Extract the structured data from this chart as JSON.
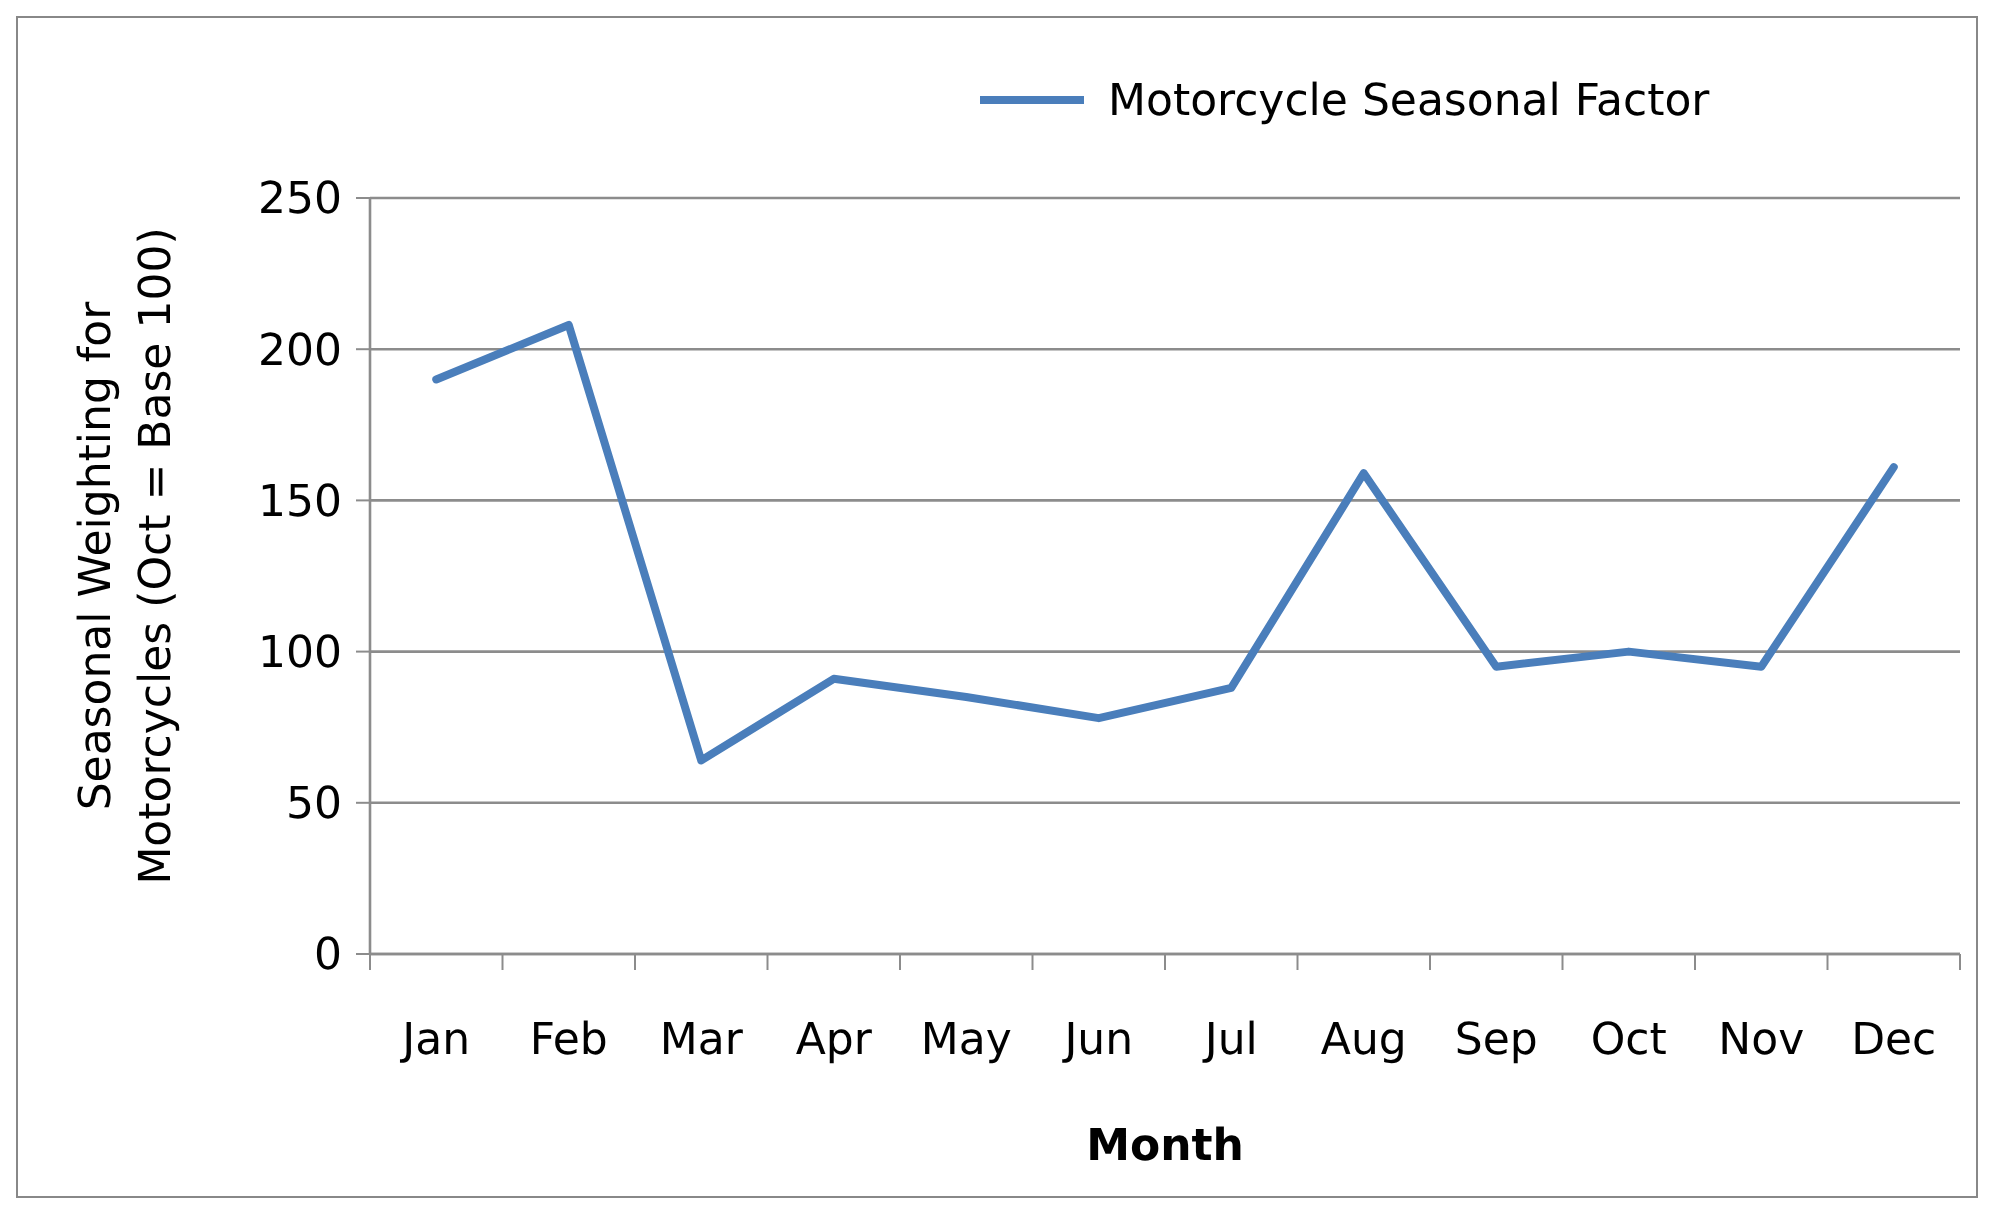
{
  "chart_data": {
    "type": "line",
    "xlabel": "Month",
    "ylabel": "Seasonal Weighting for Motorcycles (Oct = Base 100)",
    "categories": [
      "Jan",
      "Feb",
      "Mar",
      "Apr",
      "May",
      "Jun",
      "Jul",
      "Aug",
      "Sep",
      "Oct",
      "Nov",
      "Dec"
    ],
    "series": [
      {
        "name": "Motorcycle Seasonal Factor",
        "color": "#4a7ebb",
        "values": [
          190,
          208,
          64,
          91,
          85,
          78,
          88,
          159,
          95,
          100,
          95,
          161
        ]
      }
    ],
    "ylim": [
      0,
      250
    ],
    "yticks": [
      0,
      50,
      100,
      150,
      200,
      250
    ],
    "grid": "y",
    "legend": "top right",
    "marker": "none",
    "line_style": "solid"
  }
}
